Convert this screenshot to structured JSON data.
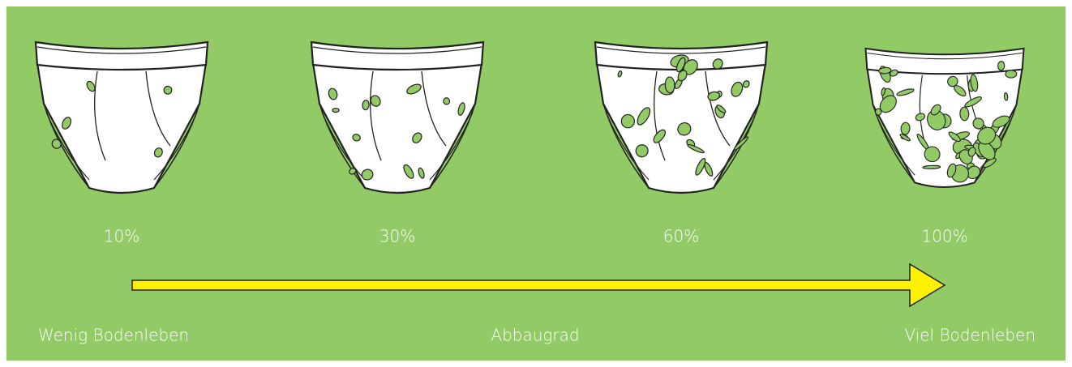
{
  "stages": [
    {
      "label": "10%"
    },
    {
      "label": "30%"
    },
    {
      "label": "60%"
    },
    {
      "label": "100%"
    }
  ],
  "scale": {
    "left": "Wenig Bodenleben",
    "center": "Abbaugrad",
    "right": "Viel Bodenleben"
  }
}
